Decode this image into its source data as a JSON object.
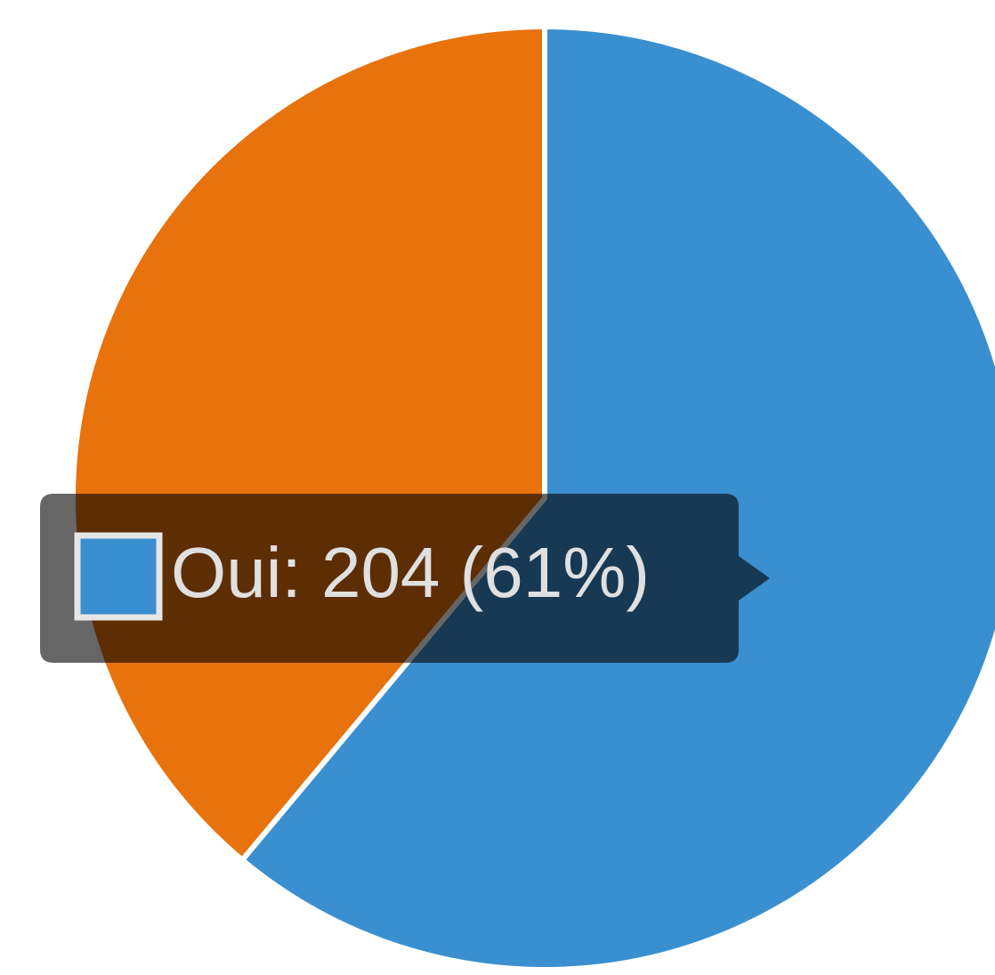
{
  "chart_data": {
    "type": "pie",
    "values": [
      204,
      130
    ],
    "colors": [
      "#3a8fd0",
      "#e8720c"
    ],
    "tooltip": "Oui: 204 (61%)"
  }
}
